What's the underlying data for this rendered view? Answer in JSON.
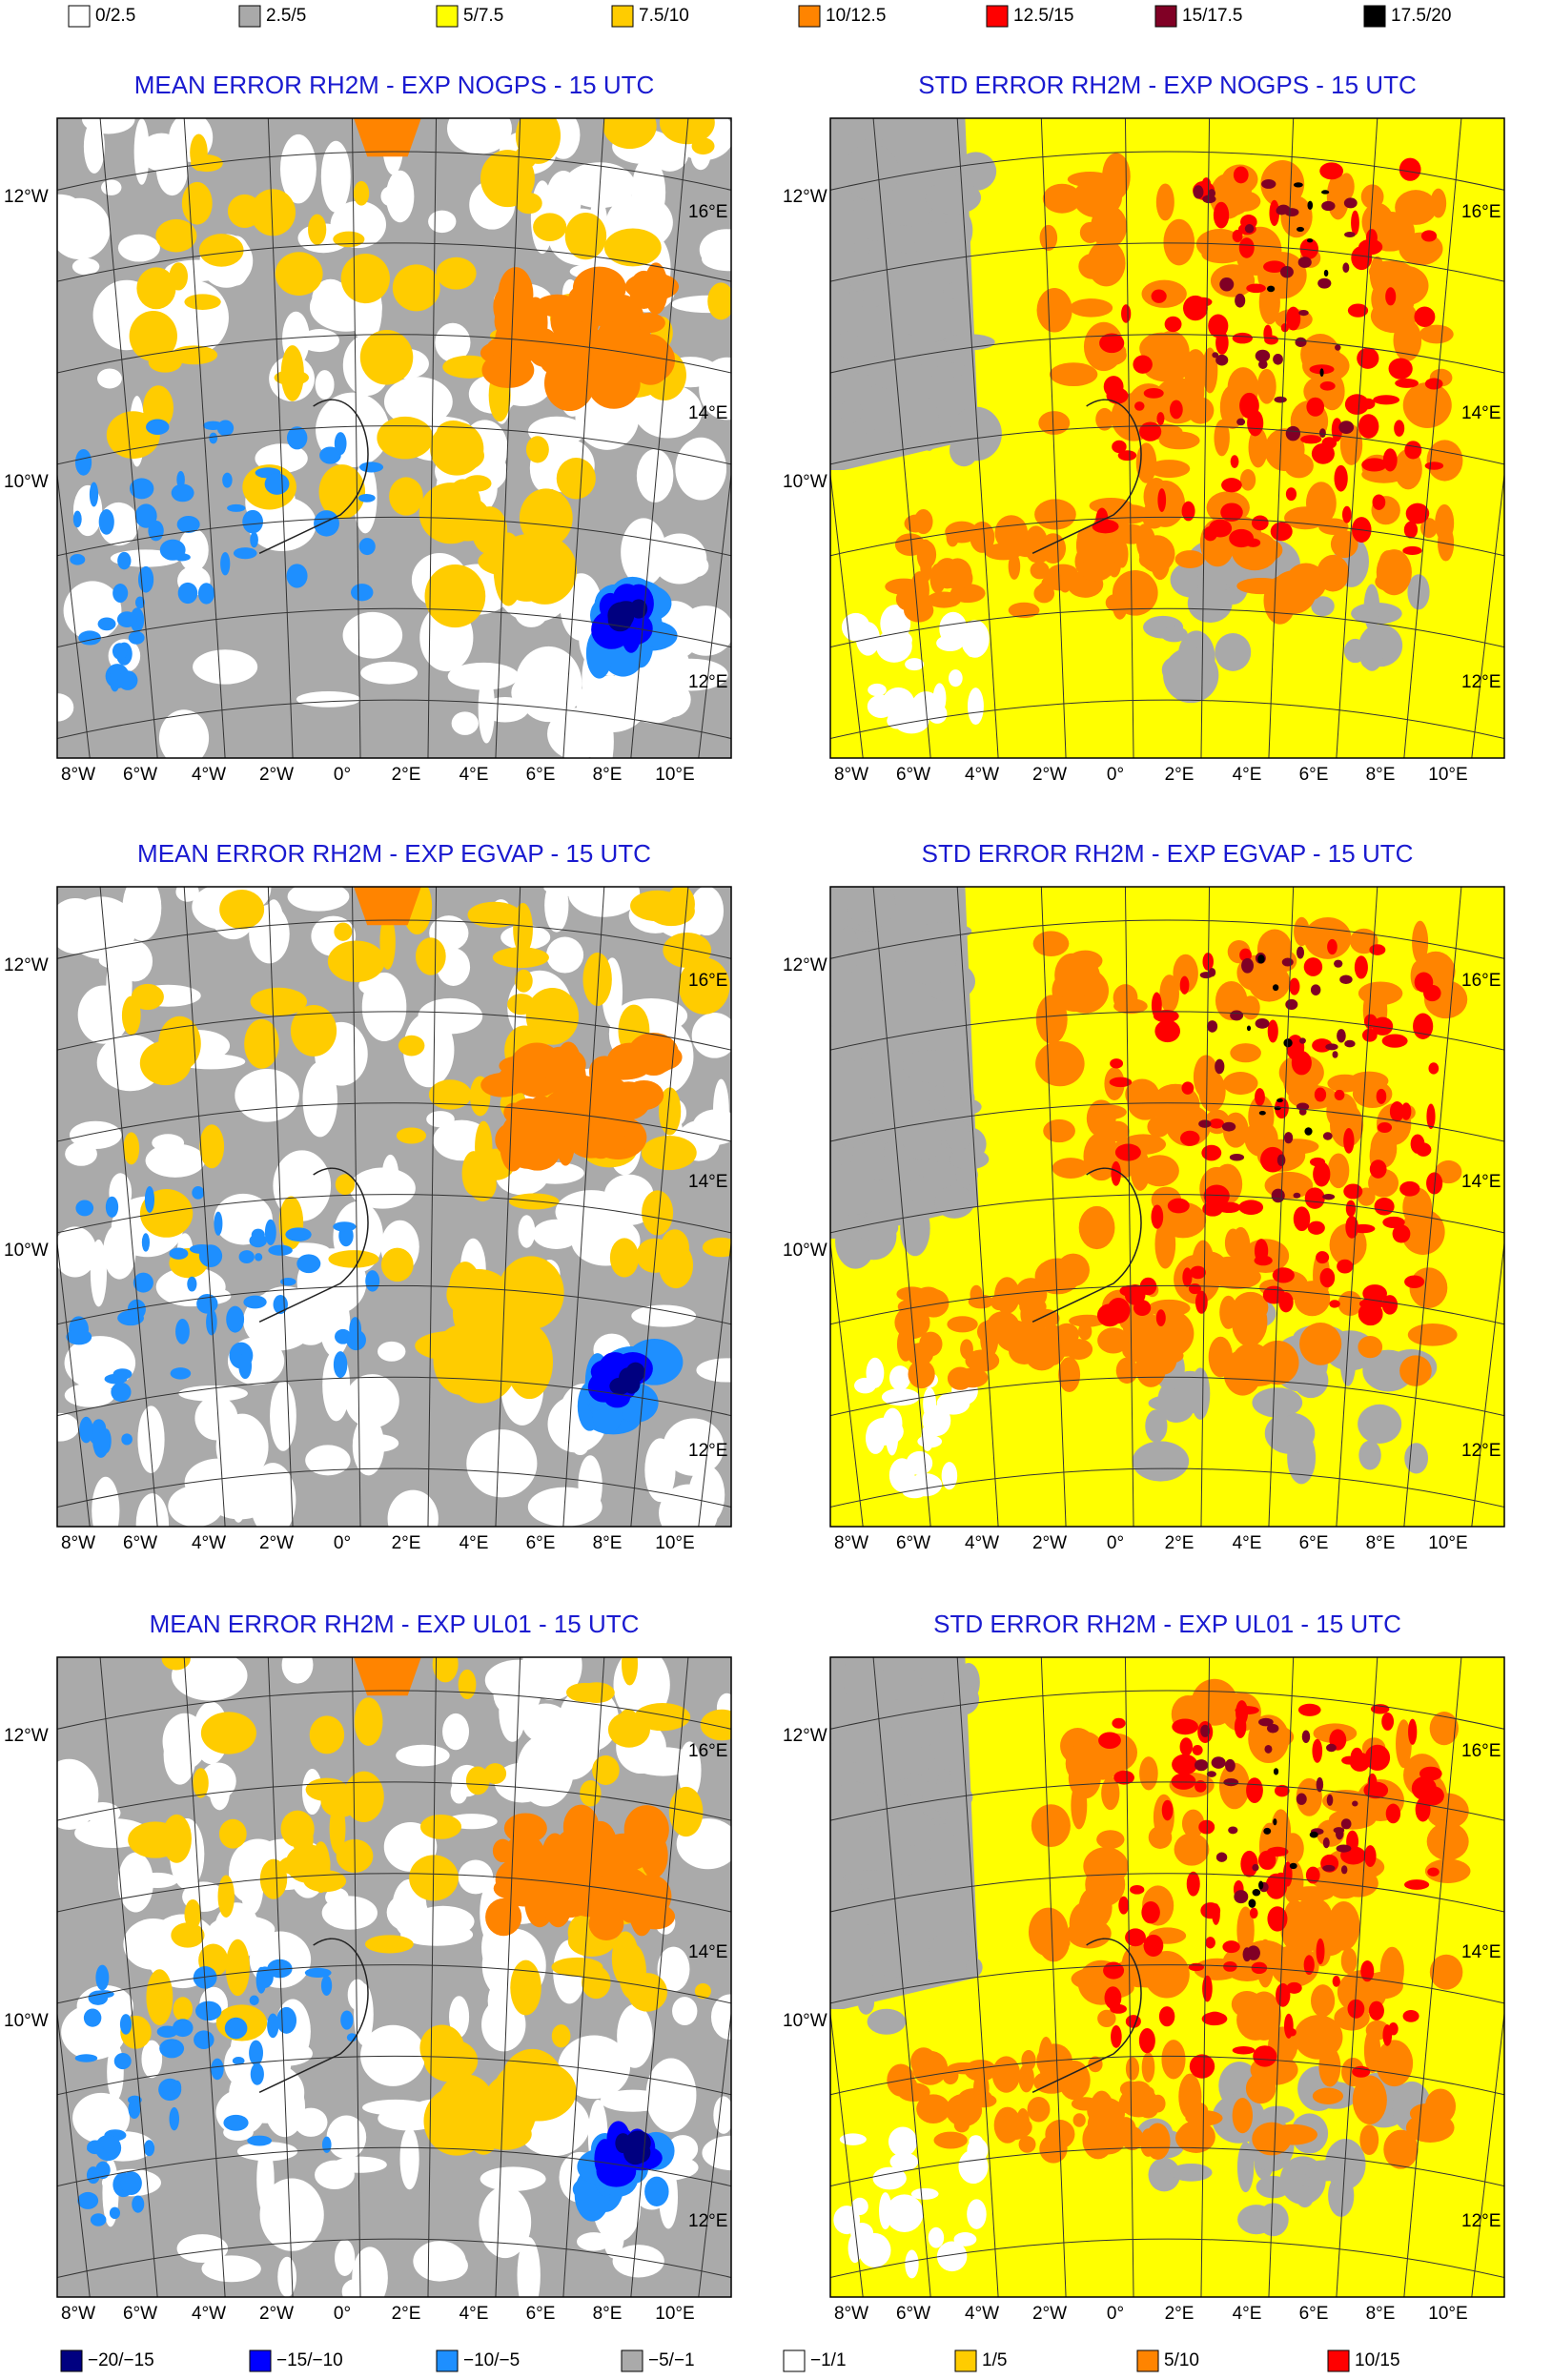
{
  "top_legend": [
    {
      "label": "0/2.5",
      "color": "#ffffff"
    },
    {
      "label": "2.5/5",
      "color": "#a9a9a9"
    },
    {
      "label": "5/7.5",
      "color": "#ffff00"
    },
    {
      "label": "7.5/10",
      "color": "#ffcc00"
    },
    {
      "label": "10/12.5",
      "color": "#ff8400"
    },
    {
      "label": "12.5/15",
      "color": "#ff0000"
    },
    {
      "label": "15/17.5",
      "color": "#800025"
    },
    {
      "label": "17.5/20",
      "color": "#000000"
    }
  ],
  "panels": [
    {
      "title": "MEAN ERROR RH2M - EXP NOGPS - 15 UTC",
      "left_labels": [
        "12°W",
        "10°W"
      ],
      "right_labels": [
        "16°E",
        "14°E",
        "12°E"
      ],
      "bottom_labels": [
        "8°W",
        "6°W",
        "4°W",
        "2°W",
        "0°",
        "2°E",
        "4°E",
        "6°E",
        "8°E",
        "10°E"
      ]
    },
    {
      "title": "STD ERROR RH2M - EXP NOGPS - 15 UTC",
      "left_labels": [
        "12°W",
        "10°W"
      ],
      "right_labels": [
        "16°E",
        "14°E",
        "12°E"
      ],
      "bottom_labels": [
        "8°W",
        "6°W",
        "4°W",
        "2°W",
        "0°",
        "2°E",
        "4°E",
        "6°E",
        "8°E",
        "10°E"
      ]
    },
    {
      "title": "MEAN ERROR RH2M - EXP EGVAP - 15 UTC",
      "left_labels": [
        "12°W",
        "10°W"
      ],
      "right_labels": [
        "16°E",
        "14°E",
        "12°E"
      ],
      "bottom_labels": [
        "8°W",
        "6°W",
        "4°W",
        "2°W",
        "0°",
        "2°E",
        "4°E",
        "6°E",
        "8°E",
        "10°E"
      ]
    },
    {
      "title": "STD ERROR RH2M - EXP EGVAP - 15 UTC",
      "left_labels": [
        "12°W",
        "10°W"
      ],
      "right_labels": [
        "16°E",
        "14°E",
        "12°E"
      ],
      "bottom_labels": [
        "8°W",
        "6°W",
        "4°W",
        "2°W",
        "0°",
        "2°E",
        "4°E",
        "6°E",
        "8°E",
        "10°E"
      ]
    },
    {
      "title": "MEAN ERROR RH2M - EXP UL01 - 15 UTC",
      "left_labels": [
        "12°W",
        "10°W"
      ],
      "right_labels": [
        "16°E",
        "14°E",
        "12°E"
      ],
      "bottom_labels": [
        "8°W",
        "6°W",
        "4°W",
        "2°W",
        "0°",
        "2°E",
        "4°E",
        "6°E",
        "8°E",
        "10°E"
      ]
    },
    {
      "title": "STD ERROR RH2M - EXP UL01 - 15 UTC",
      "left_labels": [
        "12°W",
        "10°W"
      ],
      "right_labels": [
        "16°E",
        "14°E",
        "12°E"
      ],
      "bottom_labels": [
        "8°W",
        "6°W",
        "4°W",
        "2°W",
        "0°",
        "2°E",
        "4°E",
        "6°E",
        "8°E",
        "10°E"
      ]
    }
  ],
  "bottom_legend": [
    {
      "label": "−20/−15",
      "color": "#000080"
    },
    {
      "label": "−15/−10",
      "color": "#0000ff"
    },
    {
      "label": "−10/−5",
      "color": "#1e8fff"
    },
    {
      "label": "−5/−1",
      "color": "#aaaaaa"
    },
    {
      "label": "−1/1",
      "color": "#ffffff"
    },
    {
      "label": "1/5",
      "color": "#ffcc00"
    },
    {
      "label": "5/10",
      "color": "#ff8400"
    },
    {
      "label": "10/15",
      "color": "#ff0000"
    }
  ]
}
